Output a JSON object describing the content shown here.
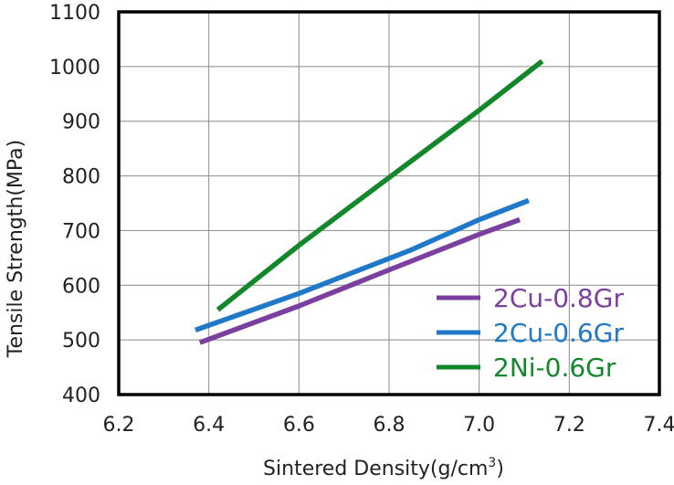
{
  "chart_data": {
    "type": "line",
    "title": "",
    "xlabel": "Sintered Density(g/cm",
    "xlabel_superscript": "3",
    "xlabel_suffix": ")",
    "ylabel": "Tensile Strength(MPa)",
    "xlim": [
      6.2,
      7.4
    ],
    "ylim": [
      400,
      1100
    ],
    "xticks": [
      "6.2",
      "6.4",
      "6.6",
      "6.8",
      "7.0",
      "7.2",
      "7.4"
    ],
    "yticks": [
      "400",
      "500",
      "600",
      "700",
      "800",
      "900",
      "1000",
      "1100"
    ],
    "grid": true,
    "legend_position": "bottom-right",
    "series": [
      {
        "name": "2Cu-0.8Gr",
        "color": "#7B3FA0",
        "x": [
          6.38,
          6.6,
          6.8,
          7.0,
          7.09
        ],
        "y": [
          495,
          562,
          628,
          693,
          720
        ]
      },
      {
        "name": "2Cu-0.6Gr",
        "color": "#1F78C8",
        "x": [
          6.37,
          6.6,
          6.85,
          7.0,
          7.11
        ],
        "y": [
          518,
          585,
          665,
          720,
          755
        ]
      },
      {
        "name": "2Ni-0.6Gr",
        "color": "#13882A",
        "x": [
          6.42,
          6.6,
          6.8,
          7.0,
          7.14
        ],
        "y": [
          555,
          673,
          797,
          920,
          1010
        ]
      }
    ]
  }
}
